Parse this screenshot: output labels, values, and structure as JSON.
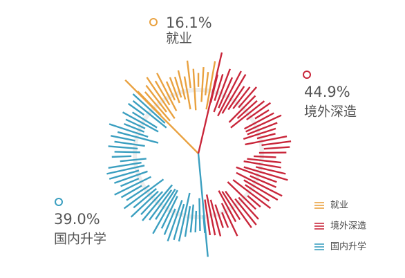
{
  "chart_data": {
    "type": "pie",
    "categories": [
      "就业",
      "境外深造",
      "国内升学"
    ],
    "values": [
      16.1,
      44.9,
      39.0
    ],
    "value_labels": [
      "16.1%",
      "44.9%",
      "39.0%"
    ],
    "colors": [
      "#e9a13f",
      "#c9263a",
      "#3b9fc0"
    ]
  }
}
